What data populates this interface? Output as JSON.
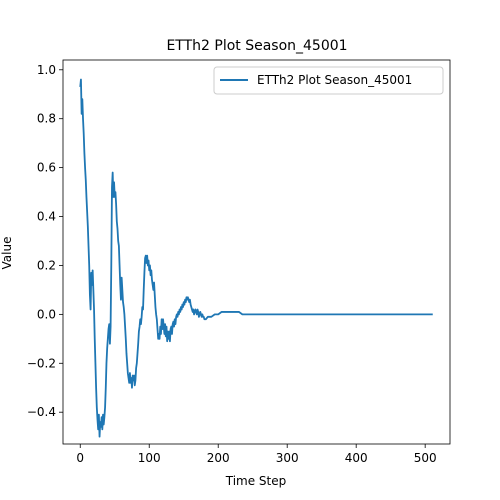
{
  "chart_data": {
    "type": "line",
    "title": "ETTh2 Plot Season_45001",
    "xlabel": "Time Step",
    "ylabel": "Value",
    "xlim": [
      -25,
      536
    ],
    "ylim": [
      -0.53,
      1.04
    ],
    "xticks": [
      0,
      100,
      200,
      300,
      400,
      500
    ],
    "yticks": [
      -0.4,
      -0.2,
      0.0,
      0.2,
      0.4,
      0.6,
      0.8,
      1.0
    ],
    "xtick_labels": [
      "0",
      "100",
      "200",
      "300",
      "400",
      "500"
    ],
    "ytick_labels": [
      "−0.4",
      "−0.2",
      "0.0",
      "0.2",
      "0.4",
      "0.6",
      "0.8",
      "1.0"
    ],
    "legend": {
      "placement": "top-right",
      "entries": [
        "ETTh2 Plot Season_45001"
      ]
    },
    "grid": false,
    "series": [
      {
        "name": "ETTh2 Plot Season_45001",
        "color": "#1f77b4",
        "points": [
          [
            0,
            0.93
          ],
          [
            1,
            0.96
          ],
          [
            2,
            0.82
          ],
          [
            3,
            0.88
          ],
          [
            4,
            0.8
          ],
          [
            5,
            0.74
          ],
          [
            6,
            0.66
          ],
          [
            7,
            0.6
          ],
          [
            8,
            0.55
          ],
          [
            9,
            0.48
          ],
          [
            10,
            0.42
          ],
          [
            11,
            0.36
          ],
          [
            12,
            0.28
          ],
          [
            13,
            0.2
          ],
          [
            14,
            0.08
          ],
          [
            15,
            0.02
          ],
          [
            16,
            0.17
          ],
          [
            17,
            0.12
          ],
          [
            18,
            0.18
          ],
          [
            19,
            0.1
          ],
          [
            20,
            0.02
          ],
          [
            21,
            -0.1
          ],
          [
            22,
            -0.2
          ],
          [
            23,
            -0.3
          ],
          [
            24,
            -0.38
          ],
          [
            25,
            -0.43
          ],
          [
            26,
            -0.47
          ],
          [
            27,
            -0.41
          ],
          [
            28,
            -0.5
          ],
          [
            29,
            -0.44
          ],
          [
            30,
            -0.46
          ],
          [
            31,
            -0.42
          ],
          [
            32,
            -0.47
          ],
          [
            33,
            -0.41
          ],
          [
            34,
            -0.45
          ],
          [
            35,
            -0.42
          ],
          [
            36,
            -0.38
          ],
          [
            37,
            -0.3
          ],
          [
            38,
            -0.2
          ],
          [
            39,
            -0.14
          ],
          [
            40,
            -0.1
          ],
          [
            41,
            -0.06
          ],
          [
            42,
            -0.04
          ],
          [
            43,
            -0.12
          ],
          [
            44,
            -0.05
          ],
          [
            45,
            0.2
          ],
          [
            46,
            0.52
          ],
          [
            47,
            0.58
          ],
          [
            48,
            0.48
          ],
          [
            49,
            0.54
          ],
          [
            50,
            0.48
          ],
          [
            51,
            0.5
          ],
          [
            52,
            0.45
          ],
          [
            53,
            0.38
          ],
          [
            54,
            0.35
          ],
          [
            55,
            0.3
          ],
          [
            56,
            0.28
          ],
          [
            57,
            0.2
          ],
          [
            58,
            0.12
          ],
          [
            59,
            0.06
          ],
          [
            60,
            0.15
          ],
          [
            61,
            0.1
          ],
          [
            62,
            0.05
          ],
          [
            63,
            0.03
          ],
          [
            64,
            0.0
          ],
          [
            65,
            -0.05
          ],
          [
            66,
            -0.1
          ],
          [
            67,
            -0.16
          ],
          [
            68,
            -0.2
          ],
          [
            69,
            -0.24
          ],
          [
            70,
            -0.26
          ],
          [
            71,
            -0.28
          ],
          [
            72,
            -0.24
          ],
          [
            73,
            -0.28
          ],
          [
            74,
            -0.26
          ],
          [
            75,
            -0.3
          ],
          [
            76,
            -0.25
          ],
          [
            77,
            -0.27
          ],
          [
            78,
            -0.25
          ],
          [
            79,
            -0.29
          ],
          [
            80,
            -0.27
          ],
          [
            81,
            -0.22
          ],
          [
            82,
            -0.2
          ],
          [
            83,
            -0.16
          ],
          [
            84,
            -0.12
          ],
          [
            85,
            -0.07
          ],
          [
            86,
            -0.05
          ],
          [
            87,
            -0.02
          ],
          [
            88,
            -0.04
          ],
          [
            89,
            -0.01
          ],
          [
            90,
            0.03
          ],
          [
            91,
            0.02
          ],
          [
            92,
            0.1
          ],
          [
            93,
            0.17
          ],
          [
            94,
            0.23
          ],
          [
            95,
            0.24
          ],
          [
            96,
            0.21
          ],
          [
            97,
            0.24
          ],
          [
            98,
            0.2
          ],
          [
            99,
            0.22
          ],
          [
            100,
            0.18
          ],
          [
            101,
            0.2
          ],
          [
            102,
            0.16
          ],
          [
            103,
            0.18
          ],
          [
            104,
            0.14
          ],
          [
            105,
            0.12
          ],
          [
            106,
            0.1
          ],
          [
            107,
            0.13
          ],
          [
            108,
            0.08
          ],
          [
            109,
            0.03
          ],
          [
            110,
            0.0
          ],
          [
            111,
            -0.02
          ],
          [
            112,
            -0.06
          ],
          [
            113,
            -0.1
          ],
          [
            114,
            -0.08
          ],
          [
            115,
            -0.1
          ],
          [
            116,
            -0.05
          ],
          [
            117,
            -0.08
          ],
          [
            118,
            -0.02
          ],
          [
            119,
            -0.06
          ],
          [
            120,
            -0.02
          ],
          [
            121,
            -0.05
          ],
          [
            122,
            -0.08
          ],
          [
            123,
            -0.04
          ],
          [
            124,
            -0.09
          ],
          [
            125,
            -0.05
          ],
          [
            126,
            -0.11
          ],
          [
            127,
            -0.07
          ],
          [
            128,
            -0.1
          ],
          [
            129,
            -0.07
          ],
          [
            130,
            -0.11
          ],
          [
            131,
            -0.06
          ],
          [
            132,
            -0.05
          ],
          [
            133,
            -0.08
          ],
          [
            134,
            -0.04
          ],
          [
            135,
            -0.03
          ],
          [
            136,
            -0.05
          ],
          [
            137,
            -0.02
          ],
          [
            138,
            -0.04
          ],
          [
            139,
            -0.01
          ],
          [
            140,
            0.0
          ],
          [
            141,
            -0.01
          ],
          [
            142,
            0.01
          ],
          [
            143,
            0.0
          ],
          [
            144,
            0.02
          ],
          [
            145,
            0.01
          ],
          [
            146,
            0.03
          ],
          [
            147,
            0.02
          ],
          [
            148,
            0.04
          ],
          [
            149,
            0.03
          ],
          [
            150,
            0.05
          ],
          [
            151,
            0.04
          ],
          [
            152,
            0.06
          ],
          [
            153,
            0.05
          ],
          [
            154,
            0.07
          ],
          [
            155,
            0.06
          ],
          [
            156,
            0.07
          ],
          [
            157,
            0.06
          ],
          [
            158,
            0.05
          ],
          [
            159,
            0.06
          ],
          [
            160,
            0.04
          ],
          [
            161,
            0.03
          ],
          [
            162,
            0.02
          ],
          [
            163,
            0.01
          ],
          [
            164,
            0.02
          ],
          [
            165,
            0.0
          ],
          [
            166,
            0.01
          ],
          [
            167,
            0.02
          ],
          [
            168,
            0.01
          ],
          [
            169,
            0.0
          ],
          [
            170,
            0.02
          ],
          [
            171,
            0.01
          ],
          [
            172,
            -0.01
          ],
          [
            173,
            0.0
          ],
          [
            174,
            0.01
          ],
          [
            175,
            0.0
          ],
          [
            176,
            -0.01
          ],
          [
            177,
            0.0
          ],
          [
            178,
            -0.01
          ],
          [
            179,
            -0.01
          ],
          [
            180,
            -0.02
          ],
          [
            182,
            -0.02
          ],
          [
            185,
            -0.01
          ],
          [
            190,
            -0.01
          ],
          [
            195,
            0.0
          ],
          [
            200,
            0.0
          ],
          [
            205,
            0.01
          ],
          [
            210,
            0.01
          ],
          [
            215,
            0.01
          ],
          [
            220,
            0.01
          ],
          [
            225,
            0.01
          ],
          [
            230,
            0.01
          ],
          [
            235,
            0.0
          ],
          [
            240,
            0.0
          ],
          [
            250,
            0.0
          ],
          [
            260,
            0.0
          ],
          [
            280,
            0.0
          ],
          [
            300,
            0.0
          ],
          [
            340,
            0.0
          ],
          [
            400,
            0.0
          ],
          [
            460,
            0.0
          ],
          [
            511,
            0.0
          ]
        ]
      }
    ]
  }
}
